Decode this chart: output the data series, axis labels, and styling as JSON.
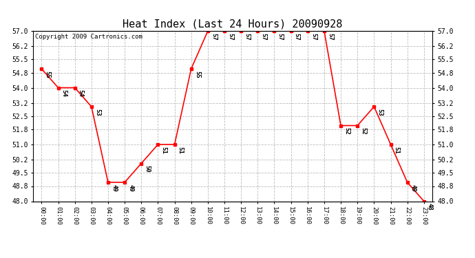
{
  "title": "Heat Index (Last 24 Hours) 20090928",
  "copyright": "Copyright 2009 Cartronics.com",
  "hours": [
    "00:00",
    "01:00",
    "02:00",
    "03:00",
    "04:00",
    "05:00",
    "06:00",
    "07:00",
    "08:00",
    "09:00",
    "10:00",
    "11:00",
    "12:00",
    "13:00",
    "14:00",
    "15:00",
    "16:00",
    "17:00",
    "18:00",
    "19:00",
    "20:00",
    "21:00",
    "22:00",
    "23:00"
  ],
  "values": [
    55,
    54,
    54,
    53,
    49,
    49,
    50,
    51,
    51,
    55,
    57,
    57,
    57,
    57,
    57,
    57,
    57,
    57,
    52,
    52,
    53,
    51,
    49,
    48
  ],
  "ylim_min": 48.0,
  "ylim_max": 57.0,
  "yticks": [
    48.0,
    48.8,
    49.5,
    50.2,
    51.0,
    51.8,
    52.5,
    53.2,
    54.0,
    54.8,
    55.5,
    56.2,
    57.0
  ],
  "line_color": "red",
  "marker": "s",
  "marker_size": 3,
  "bg_color": "white",
  "grid_color": "#bbbbbb",
  "label_fontsize": 6.5,
  "title_fontsize": 11,
  "copyright_fontsize": 6.5
}
